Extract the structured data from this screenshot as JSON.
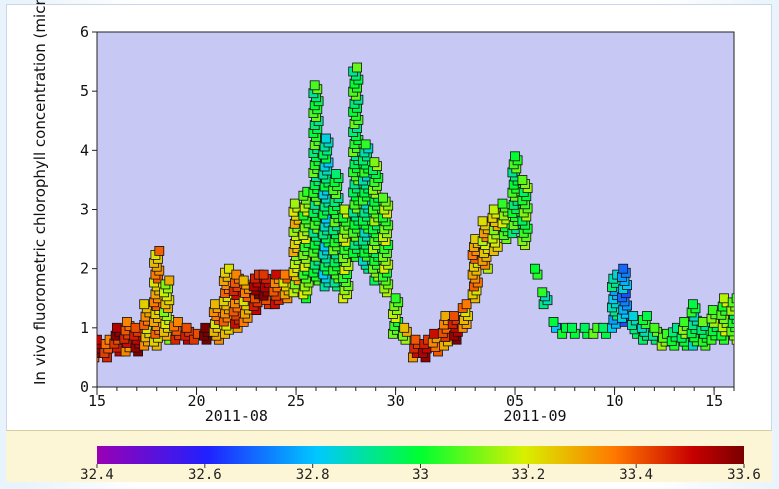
{
  "chart_data": {
    "type": "scatter",
    "title": "",
    "ylabel": "In vivo fluorometric chlorophyll concentration (microg L-",
    "ylim": [
      0,
      6
    ],
    "yticks": [
      "0",
      "1",
      "2",
      "3",
      "4",
      "5",
      "6"
    ],
    "xlim": [
      "2011-08-15",
      "2011-09-16"
    ],
    "xticks": [
      {
        "date": "2011-08-15",
        "label": "15"
      },
      {
        "date": "2011-08-20",
        "label": "20"
      },
      {
        "date": "2011-08-25",
        "label": "25"
      },
      {
        "date": "2011-08-30",
        "label": "30"
      },
      {
        "date": "2011-09-05",
        "label": "05"
      },
      {
        "date": "2011-09-10",
        "label": "10"
      },
      {
        "date": "2011-09-15",
        "label": "15"
      }
    ],
    "month_labels": [
      {
        "date": "2011-08-22",
        "label": "2011-08"
      },
      {
        "date": "2011-09-06",
        "label": "2011-09"
      }
    ],
    "plot_background": "#c8c8f4",
    "marker": "square",
    "colorbar": {
      "min": 32.4,
      "max": 33.6,
      "ticks": [
        "32.4",
        "32.6",
        "32.8",
        "33",
        "33.2",
        "33.4",
        "33.6"
      ],
      "colors": [
        "#9a00b4",
        "#2020ff",
        "#00c8ff",
        "#00ff30",
        "#d8f000",
        "#ff7800",
        "#c80000",
        "#7a0000"
      ]
    },
    "series": [
      {
        "segments": [
          {
            "x": [
              "2011-08-15T00:00",
              "2011-08-15T12:00",
              "2011-08-16T00:00",
              "2011-08-16T12:00",
              "2011-08-17T00:00",
              "2011-08-17T12:00",
              "2011-08-18T00:00",
              "2011-08-18T12:00",
              "2011-08-19T00:00",
              "2011-08-19T12:00",
              "2011-08-20T00:00",
              "2011-08-20T12:00",
              "2011-08-21T00:00",
              "2011-08-21T12:00",
              "2011-08-22T00:00",
              "2011-08-22T12:00",
              "2011-08-23T00:00",
              "2011-08-23T12:00",
              "2011-08-24T00:00",
              "2011-08-24T12:00",
              "2011-08-25T00:00",
              "2011-08-25T12:00",
              "2011-08-26T00:00",
              "2011-08-26T12:00",
              "2011-08-27T00:00",
              "2011-08-27T12:00",
              "2011-08-28T00:00",
              "2011-08-28T12:00",
              "2011-08-29T00:00",
              "2011-08-29T12:00",
              "2011-08-30T00:00",
              "2011-08-30T12:00"
            ],
            "lo": [
              0.5,
              0.5,
              0.6,
              0.6,
              0.6,
              0.7,
              0.7,
              0.8,
              0.8,
              0.8,
              0.8,
              0.8,
              0.8,
              0.9,
              1.0,
              1.1,
              1.3,
              1.4,
              1.4,
              1.5,
              1.6,
              1.5,
              1.8,
              1.7,
              1.7,
              1.5,
              2.2,
              2.0,
              1.8,
              1.6,
              0.9,
              0.8
            ],
            "hi": [
              0.8,
              0.8,
              1.0,
              1.1,
              1.0,
              1.4,
              2.3,
              1.8,
              1.1,
              1.0,
              0.9,
              1.0,
              1.4,
              2.0,
              1.9,
              1.8,
              1.9,
              1.9,
              1.9,
              1.9,
              3.1,
              3.3,
              5.1,
              4.2,
              3.6,
              3.0,
              5.4,
              4.1,
              3.8,
              3.2,
              1.5,
              1.0
            ],
            "c": [
              33.5,
              33.4,
              33.5,
              33.4,
              33.5,
              33.3,
              33.3,
              33.2,
              33.4,
              33.5,
              33.5,
              33.6,
              33.3,
              33.3,
              33.4,
              33.3,
              33.5,
              33.5,
              33.4,
              33.3,
              33.2,
              33.1,
              33.0,
              32.9,
              33.0,
              33.1,
              33.0,
              32.95,
              33.05,
              33.1,
              33.1,
              33.2
            ]
          },
          {
            "x": [
              "2011-08-31T00:00",
              "2011-08-31T12:00",
              "2011-09-01T00:00",
              "2011-09-01T12:00",
              "2011-09-02T00:00",
              "2011-09-02T12:00",
              "2011-09-03T00:00",
              "2011-09-03T12:00",
              "2011-09-04T00:00",
              "2011-09-04T12:00",
              "2011-09-05T00:00",
              "2011-09-05T12:00",
              "2011-09-06T00:00",
              "2011-09-06T12:00",
              "2011-09-07T00:00",
              "2011-09-07T12:00",
              "2011-09-08T00:00",
              "2011-09-08T12:00",
              "2011-09-09T00:00",
              "2011-09-09T12:00",
              "2011-09-10T00:00",
              "2011-09-10T12:00",
              "2011-09-11T00:00",
              "2011-09-11T12:00",
              "2011-09-12T00:00",
              "2011-09-12T12:00",
              "2011-09-13T00:00",
              "2011-09-13T12:00",
              "2011-09-14T00:00",
              "2011-09-14T12:00",
              "2011-09-15T00:00",
              "2011-09-15T12:00",
              "2011-09-16T00:00"
            ],
            "lo": [
              0.5,
              0.5,
              0.6,
              0.7,
              0.8,
              1.0,
              1.5,
              2.0,
              2.3,
              2.5,
              2.6,
              2.4,
              1.9,
              1.4,
              1.0,
              0.9,
              0.9,
              0.9,
              0.9,
              0.9,
              1.0,
              1.1,
              0.9,
              0.8,
              0.8,
              0.7,
              0.7,
              0.7,
              0.7,
              0.7,
              0.8,
              0.8,
              0.8
            ],
            "hi": [
              0.8,
              0.8,
              0.9,
              1.2,
              1.2,
              1.4,
              2.5,
              2.8,
              3.0,
              3.1,
              3.9,
              3.5,
              2.0,
              1.6,
              1.1,
              1.0,
              1.0,
              1.0,
              1.0,
              1.0,
              1.9,
              2.0,
              1.2,
              1.2,
              1.0,
              0.9,
              1.0,
              1.1,
              1.4,
              1.1,
              1.3,
              1.5,
              1.5
            ],
            "c": [
              33.4,
              33.5,
              33.4,
              33.35,
              33.5,
              33.3,
              33.3,
              33.25,
              33.2,
              33.1,
              33.0,
              33.05,
              33.0,
              32.95,
              32.9,
              32.95,
              33.0,
              33.05,
              33.0,
              32.95,
              32.85,
              32.75,
              32.9,
              32.95,
              33.0,
              33.05,
              33.0,
              33.05,
              32.95,
              33.0,
              33.05,
              33.1,
              33.05
            ]
          }
        ]
      }
    ]
  }
}
